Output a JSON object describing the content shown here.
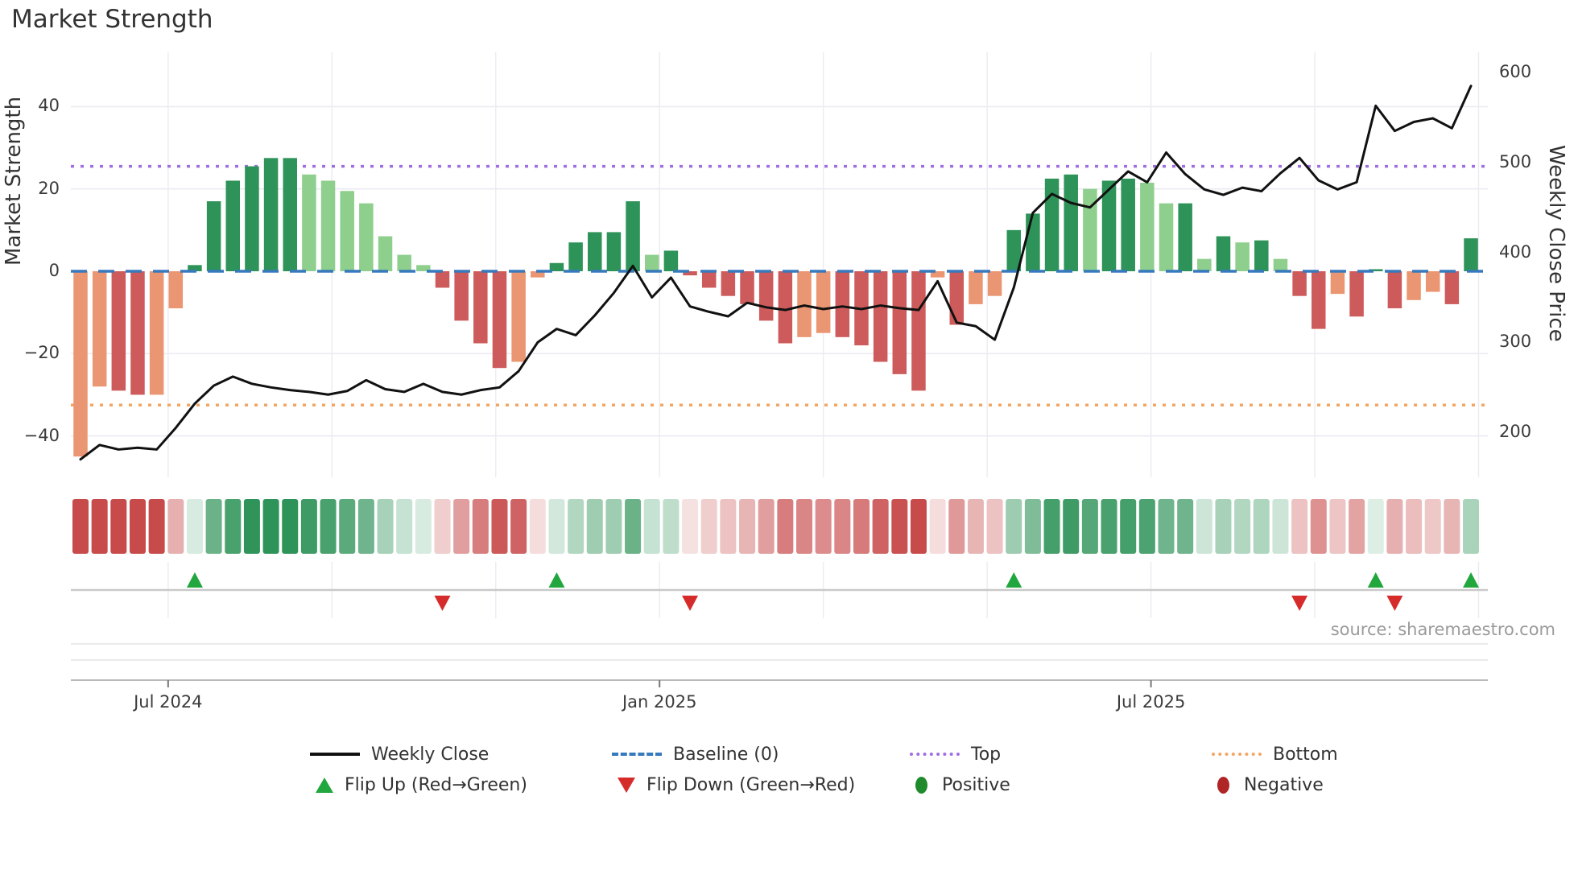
{
  "title": "Market Strength",
  "source_note": "source: sharemaestro.com",
  "axes": {
    "left_label": "Market Strength",
    "right_label": "Weekly Close Price",
    "left_ticks": [
      40,
      20,
      0,
      -20,
      -40
    ],
    "right_ticks": [
      600,
      500,
      400,
      300,
      200
    ],
    "x_tick_labels": [
      "Jul 2024",
      "Jan 2025",
      "Jul 2025"
    ]
  },
  "legend": {
    "rows": [
      [
        {
          "label": "Weekly Close",
          "swatch": "line-black"
        },
        {
          "label": "Baseline (0)",
          "swatch": "dash-blue"
        },
        {
          "label": "Top",
          "swatch": "dot-purple"
        },
        {
          "label": "Bottom",
          "swatch": "dot-orange"
        }
      ],
      [
        {
          "label": "Flip Up (Red→Green)",
          "swatch": "triangle-up-green"
        },
        {
          "label": "Flip Down (Green→Red)",
          "swatch": "triangle-down-red"
        },
        {
          "label": "Positive",
          "swatch": "circle-green"
        },
        {
          "label": "Negative",
          "swatch": "circle-darkred"
        }
      ]
    ]
  },
  "colors": {
    "bar_pos_strong": "#2e9358",
    "bar_pos_weak": "#8ecf8d",
    "bar_neg_strong": "#cd5b5b",
    "bar_neg_weak": "#ea9672",
    "heat_pos": "#2e9358",
    "heat_neg": "#c84b4b",
    "price_line": "#111111",
    "baseline": "#3779bd",
    "top_line": "#a06ee3",
    "bottom_line": "#f3a564",
    "flip_up": "#22a63e",
    "flip_down": "#d62b2b",
    "grid": "#ebebf2",
    "marker_axis": "#c9c9c9",
    "spine": "#b0b0b0"
  },
  "chart_data": {
    "type": "combo (weekly strength bars + weekly close line + heatmap strip + flip markers)",
    "x_unit": "week",
    "x_range_note": "weekly data, late May 2024 through mid Nov 2025",
    "title": "Market Strength",
    "ylabel_left": "Market Strength",
    "ylabel_right": "Weekly Close Price",
    "left_ylim": [
      -50,
      53
    ],
    "right_ylim": [
      151,
      622
    ],
    "baseline_value": 0,
    "top_value": 25.5,
    "bottom_value": -32.5,
    "strength": [
      -45,
      -28,
      -29,
      -30,
      -30,
      -9,
      1.5,
      17,
      22,
      25.5,
      27.5,
      27.5,
      23.5,
      22,
      19.5,
      16.5,
      8.5,
      4,
      1.5,
      -4,
      -12,
      -17.5,
      -23.5,
      -22,
      -1.5,
      2,
      7,
      9.5,
      9.5,
      17,
      4,
      5,
      -1,
      -4,
      -6,
      -8,
      -12,
      -17.5,
      -16,
      -15,
      -16,
      -18,
      -22,
      -25,
      -29,
      -1.5,
      -13,
      -8,
      -6,
      10,
      14,
      22.5,
      23.5,
      20,
      22,
      22.5,
      21.5,
      16.5,
      16.5,
      3,
      8.5,
      7,
      7.5,
      3,
      -6,
      -14,
      -5.5,
      -11,
      0.5,
      -9,
      -7,
      -5,
      -8,
      8
    ],
    "weekly_close": [
      170,
      186,
      181,
      183,
      181,
      205,
      232,
      252,
      262,
      254,
      250,
      247,
      245,
      242,
      246,
      258,
      248,
      245,
      254,
      245,
      242,
      247,
      250,
      268,
      300,
      315,
      308,
      330,
      355,
      385,
      350,
      372,
      340,
      334,
      329,
      344,
      339,
      336,
      341,
      337,
      340,
      337,
      341,
      338,
      336,
      368,
      322,
      318,
      303,
      361,
      444,
      465,
      455,
      450,
      470,
      490,
      478,
      511,
      487,
      470,
      464,
      472,
      468,
      488,
      505,
      480,
      470,
      478,
      563,
      535,
      545,
      549,
      538,
      585
    ],
    "flip_up_weeks": [
      7,
      26,
      50,
      69,
      74
    ],
    "flip_down_weeks": [
      20,
      33,
      65,
      70
    ],
    "x_gridline_weeks": [
      5.6,
      14.2,
      22.8,
      31.4,
      40.0,
      48.6,
      57.2,
      65.8,
      74.4
    ],
    "x_tick_weeks": [
      5.6,
      31.4,
      57.2
    ],
    "x_tick_labels": [
      "Jul 2024",
      "Jan 2025",
      "Jul 2025"
    ],
    "legend_position": "bottom, two rows"
  }
}
